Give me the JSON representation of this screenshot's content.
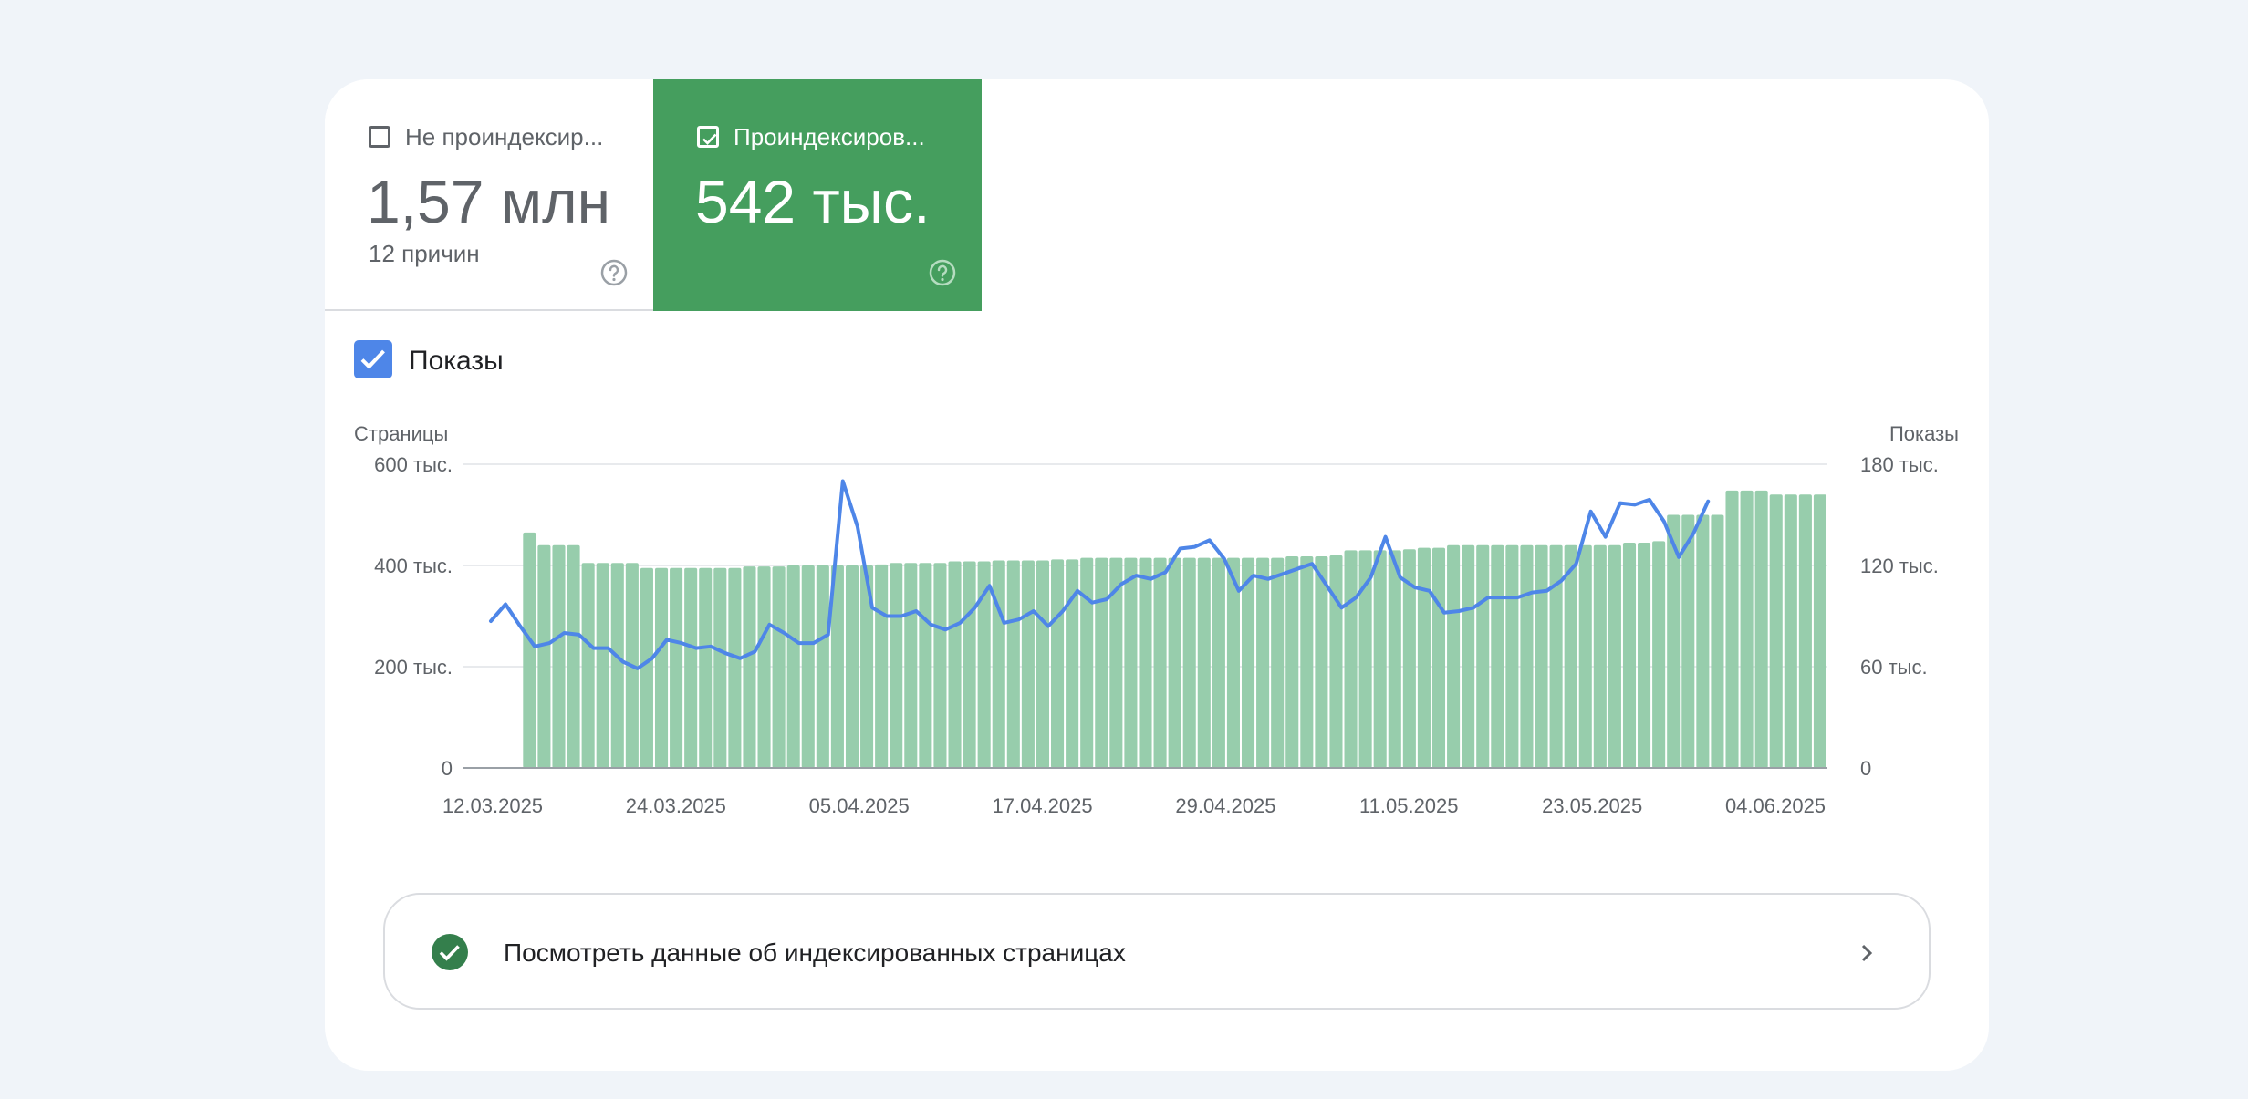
{
  "tabs": [
    {
      "label": "Не проиндексир...",
      "value": "1,57 млн",
      "subtitle": "12 причин",
      "checked": false
    },
    {
      "label": "Проиндексиров...",
      "value": "542 тыс.",
      "subtitle": "",
      "checked": true
    }
  ],
  "metric_toggle": {
    "label": "Показы",
    "checked": true
  },
  "colors": {
    "indexed": "#459e5e",
    "bars": "#97cdac",
    "impressions": "#4e86e8",
    "not_indexed": "#5f6368"
  },
  "icons": {
    "help": "help-circle-icon",
    "ok": "check-circle-icon",
    "chevron": "chevron-right-icon"
  },
  "chart_data": {
    "type": "bar",
    "ylabel": "Страницы",
    "y2label": "Показы",
    "ylim": [
      0,
      600000
    ],
    "y2lim": [
      0,
      180000
    ],
    "yticks": [
      "0",
      "200 тыс.",
      "400 тыс.",
      "600 тыс."
    ],
    "y2ticks": [
      "0",
      "60 тыс.",
      "120 тыс.",
      "180 тыс."
    ],
    "xticks": [
      "12.03.2025",
      "24.03.2025",
      "05.04.2025",
      "17.04.2025",
      "29.04.2025",
      "11.05.2025",
      "23.05.2025",
      "04.06.2025"
    ],
    "grid": true,
    "legend": "none",
    "series": [
      {
        "name": "Страницы",
        "type": "bar",
        "axis": "left",
        "values": [
          null,
          null,
          null,
          null,
          465000,
          440000,
          440000,
          440000,
          405000,
          405000,
          405000,
          405000,
          395000,
          395000,
          395000,
          395000,
          395000,
          395000,
          395000,
          398000,
          398000,
          398000,
          400000,
          400000,
          400000,
          400000,
          400000,
          400000,
          402000,
          405000,
          405000,
          405000,
          405000,
          408000,
          408000,
          408000,
          410000,
          410000,
          410000,
          410000,
          412000,
          412000,
          415000,
          415000,
          415000,
          415000,
          415000,
          415000,
          415000,
          415000,
          415000,
          415000,
          415000,
          415000,
          415000,
          415000,
          418000,
          418000,
          418000,
          420000,
          430000,
          430000,
          430000,
          430000,
          432000,
          435000,
          435000,
          440000,
          440000,
          440000,
          440000,
          440000,
          440000,
          440000,
          440000,
          440000,
          440000,
          440000,
          440000,
          445000,
          445000,
          448000,
          500000,
          500000,
          500000,
          500000,
          548000,
          548000,
          548000,
          540000,
          540000,
          540000,
          540000
        ]
      },
      {
        "name": "Показы",
        "type": "line",
        "axis": "right",
        "values": [
          87000,
          97000,
          84000,
          72000,
          74000,
          80000,
          79000,
          71000,
          71000,
          63000,
          59000,
          65000,
          76000,
          74000,
          71000,
          72000,
          68000,
          65000,
          69000,
          85000,
          80000,
          74000,
          74000,
          79000,
          170000,
          143000,
          95000,
          90000,
          90000,
          93000,
          85000,
          82000,
          86000,
          95000,
          108000,
          86000,
          88000,
          93000,
          84000,
          93000,
          105000,
          98000,
          100000,
          109000,
          114000,
          112000,
          116000,
          130000,
          131000,
          135000,
          124000,
          105000,
          114000,
          112000,
          115000,
          118000,
          121000,
          108000,
          95000,
          101000,
          113000,
          137000,
          113000,
          107000,
          105000,
          92000,
          93000,
          95000,
          101000,
          101000,
          101000,
          104000,
          105000,
          111000,
          121000,
          152000,
          137000,
          157000,
          156000,
          159000,
          146000,
          125000,
          139000,
          158000
        ]
      }
    ]
  },
  "link": {
    "text": "Посмотреть данные об индексированных страницах"
  }
}
